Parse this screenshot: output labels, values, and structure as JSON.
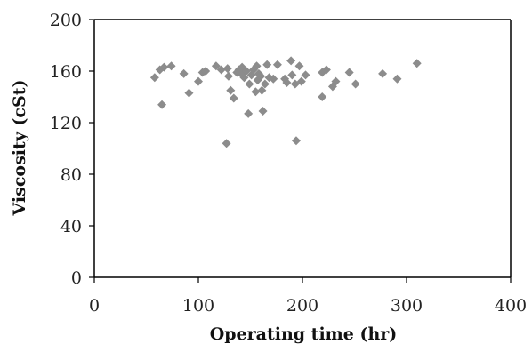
{
  "chart_data": {
    "type": "scatter",
    "title": "",
    "xlabel": "Operating time (hr)",
    "ylabel": "Viscosity (cSt)",
    "xlim": [
      0,
      400
    ],
    "ylim": [
      0,
      200
    ],
    "x_ticks": [
      0,
      100,
      200,
      300,
      400
    ],
    "y_ticks": [
      0,
      40,
      80,
      120,
      160,
      200
    ],
    "grid": false,
    "legend": "none",
    "marker": "diamond",
    "marker_color": "#8c8c8c",
    "series": [
      {
        "points": [
          [
            58,
            155
          ],
          [
            63,
            161
          ],
          [
            65,
            134
          ],
          [
            67,
            163
          ],
          [
            74,
            164
          ],
          [
            86,
            158
          ],
          [
            91,
            143
          ],
          [
            100,
            152
          ],
          [
            104,
            159
          ],
          [
            107,
            160
          ],
          [
            117,
            164
          ],
          [
            122,
            161
          ],
          [
            127,
            104
          ],
          [
            128,
            162
          ],
          [
            129,
            156
          ],
          [
            131,
            145
          ],
          [
            134,
            139
          ],
          [
            137,
            159
          ],
          [
            139,
            161
          ],
          [
            141,
            158
          ],
          [
            142,
            163
          ],
          [
            144,
            155
          ],
          [
            146,
            160
          ],
          [
            148,
            127
          ],
          [
            149,
            150
          ],
          [
            151,
            157
          ],
          [
            153,
            161
          ],
          [
            155,
            144
          ],
          [
            156,
            164
          ],
          [
            157,
            153
          ],
          [
            158,
            158
          ],
          [
            160,
            156
          ],
          [
            161,
            145
          ],
          [
            162,
            129
          ],
          [
            164,
            150
          ],
          [
            166,
            165
          ],
          [
            168,
            155
          ],
          [
            172,
            154
          ],
          [
            176,
            165
          ],
          [
            183,
            154
          ],
          [
            185,
            151
          ],
          [
            189,
            168
          ],
          [
            190,
            157
          ],
          [
            193,
            150
          ],
          [
            194,
            106
          ],
          [
            197,
            164
          ],
          [
            199,
            152
          ],
          [
            203,
            157
          ],
          [
            219,
            140
          ],
          [
            219,
            159
          ],
          [
            223,
            161
          ],
          [
            229,
            148
          ],
          [
            232,
            152
          ],
          [
            245,
            159
          ],
          [
            251,
            150
          ],
          [
            277,
            158
          ],
          [
            291,
            154
          ],
          [
            310,
            166
          ]
        ]
      }
    ]
  }
}
